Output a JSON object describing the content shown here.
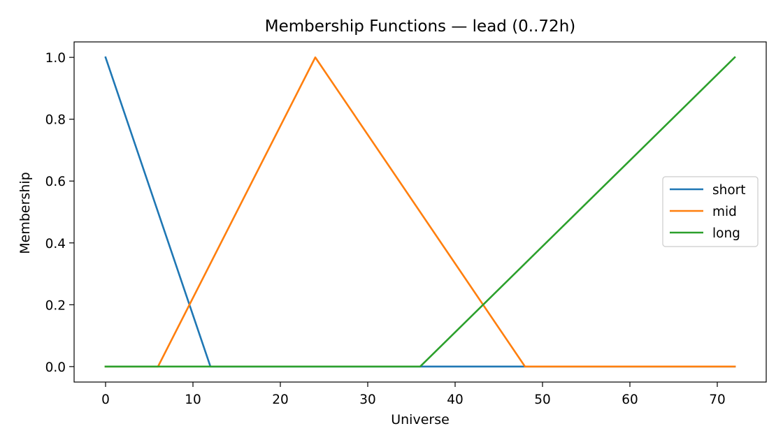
{
  "chart_data": {
    "type": "line",
    "title": "Membership Functions — lead (0..72h)",
    "xlabel": "Universe",
    "ylabel": "Membership",
    "xlim": [
      -3.6,
      75.6
    ],
    "ylim": [
      -0.05,
      1.05
    ],
    "xticks": [
      0,
      10,
      20,
      30,
      40,
      50,
      60,
      70
    ],
    "xtick_labels": [
      "0",
      "10",
      "20",
      "30",
      "40",
      "50",
      "60",
      "70"
    ],
    "yticks": [
      0.0,
      0.2,
      0.4,
      0.6,
      0.8,
      1.0
    ],
    "ytick_labels": [
      "0.0",
      "0.2",
      "0.4",
      "0.6",
      "0.8",
      "1.0"
    ],
    "grid": false,
    "legend_position": "center-right",
    "series": [
      {
        "name": "short",
        "color": "#1f77b4",
        "x": [
          0,
          12,
          72
        ],
        "y": [
          1,
          0,
          0
        ]
      },
      {
        "name": "mid",
        "color": "#ff7f0e",
        "x": [
          0,
          6,
          24,
          48,
          72
        ],
        "y": [
          0,
          0,
          1,
          0,
          0
        ]
      },
      {
        "name": "long",
        "color": "#2ca02c",
        "x": [
          0,
          36,
          72
        ],
        "y": [
          0,
          0,
          1
        ]
      }
    ]
  }
}
